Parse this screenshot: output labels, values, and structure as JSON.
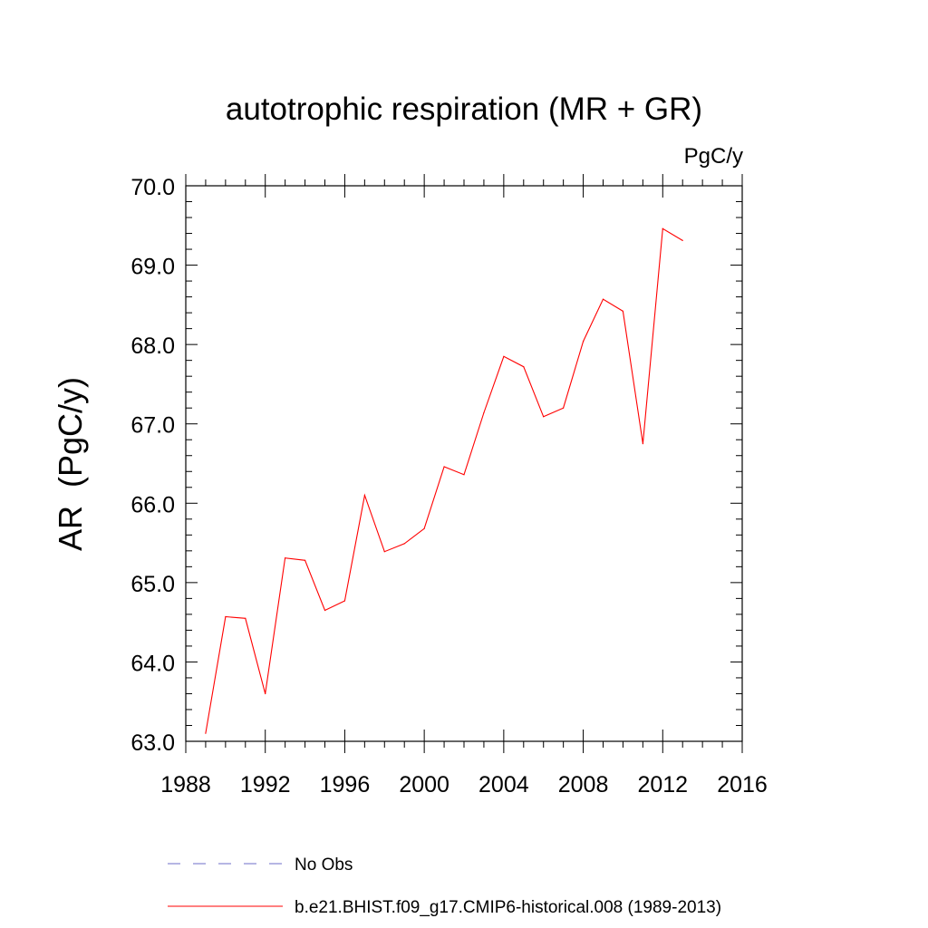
{
  "chart_data": {
    "type": "line",
    "title": "autotrophic respiration (MR + GR)",
    "units": "PgC/y",
    "xlabel": "",
    "ylabel": "AR  (PgC/y)",
    "xlim": [
      1988,
      2016
    ],
    "ylim": [
      63.0,
      70.0
    ],
    "x_ticks": [
      1988,
      1992,
      1996,
      2000,
      2004,
      2008,
      2012,
      2016
    ],
    "x_tick_labels": [
      "1988",
      "1992",
      "1996",
      "2000",
      "2004",
      "2008",
      "2012",
      "2016"
    ],
    "y_ticks": [
      63.0,
      64.0,
      65.0,
      66.0,
      67.0,
      68.0,
      69.0,
      70.0
    ],
    "y_tick_labels": [
      "63.0",
      "64.0",
      "65.0",
      "66.0",
      "67.0",
      "68.0",
      "69.0",
      "70.0"
    ],
    "grid": false,
    "legend_position": "bottom",
    "series": [
      {
        "name": "b.e21.BHIST.f09_g17.CMIP6-historical.008 (1989-2013)",
        "color": "#ff0000",
        "style": "solid",
        "x": [
          1989,
          1990,
          1991,
          1992,
          1993,
          1994,
          1995,
          1996,
          1997,
          1998,
          1999,
          2000,
          2001,
          2002,
          2003,
          2004,
          2005,
          2006,
          2007,
          2008,
          2009,
          2010,
          2011,
          2012,
          2013
        ],
        "values": [
          63.1,
          64.57,
          64.55,
          63.6,
          65.31,
          65.28,
          64.65,
          64.77,
          66.1,
          65.39,
          65.49,
          65.68,
          66.46,
          66.36,
          67.14,
          67.85,
          67.72,
          67.09,
          67.2,
          68.04,
          68.57,
          68.42,
          66.75,
          69.46,
          69.31
        ]
      }
    ],
    "legend": [
      {
        "label": "No Obs",
        "color": "#6e6ec8",
        "style": "dashed"
      },
      {
        "label": "b.e21.BHIST.f09_g17.CMIP6-historical.008 (1989-2013)",
        "color": "#ff0000",
        "style": "solid"
      }
    ]
  }
}
